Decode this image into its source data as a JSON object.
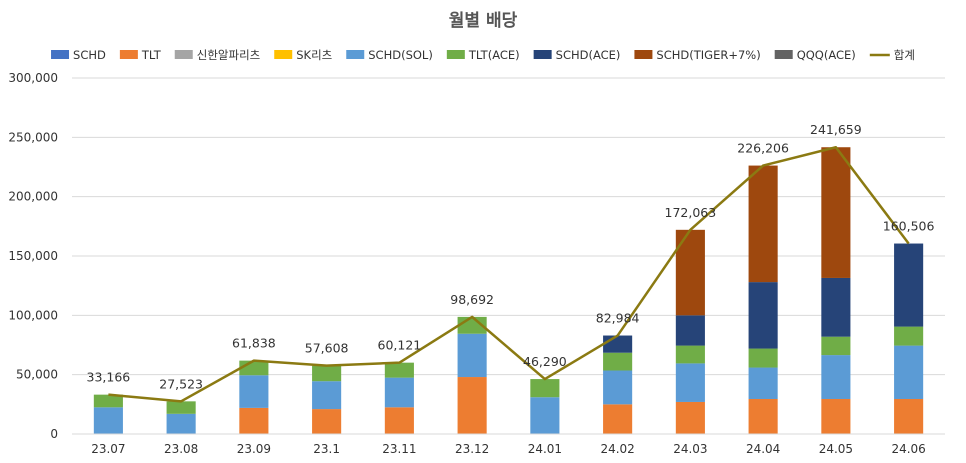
{
  "chart_data": {
    "type": "bar",
    "stacked": true,
    "title": "월별 배당",
    "xlabel": "",
    "ylabel": "",
    "ylim": [
      0,
      300000
    ],
    "yticks": [
      0,
      50000,
      100000,
      150000,
      200000,
      250000,
      300000
    ],
    "ytick_labels": [
      "0",
      "50,000",
      "100,000",
      "150,000",
      "200,000",
      "250,000",
      "300,000"
    ],
    "legend_position": "top",
    "categories": [
      "23.07",
      "23.08",
      "23.09",
      "23.1",
      "23.11",
      "23.12",
      "24.01",
      "24.02",
      "24.03",
      "24.04",
      "24.05",
      "24.06"
    ],
    "series": [
      {
        "name": "SCHD",
        "color": "#4472C4",
        "values": [
          0,
          0,
          0,
          0,
          0,
          0,
          0,
          0,
          0,
          0,
          0,
          0
        ]
      },
      {
        "name": "TLT",
        "color": "#ED7D31",
        "values": [
          0,
          0,
          22000,
          21000,
          22500,
          48000,
          0,
          25000,
          27000,
          29500,
          29500,
          29500
        ]
      },
      {
        "name": "신한알파리츠",
        "color": "#A5A5A5",
        "values": [
          0,
          0,
          0,
          0,
          0,
          0,
          0,
          0,
          0,
          0,
          0,
          0
        ]
      },
      {
        "name": "SK리츠",
        "color": "#FFC000",
        "values": [
          0,
          0,
          0,
          0,
          0,
          0,
          0,
          0,
          0,
          0,
          0,
          0
        ]
      },
      {
        "name": "SCHD(SOL)",
        "color": "#5B9BD5",
        "values": [
          22500,
          17000,
          27500,
          23500,
          25000,
          36500,
          31000,
          28500,
          32500,
          26500,
          37000,
          45000
        ]
      },
      {
        "name": "TLT(ACE)",
        "color": "#70AD47",
        "values": [
          10666,
          10523,
          12338,
          13108,
          12621,
          14192,
          15290,
          15000,
          15000,
          16000,
          15500,
          16000
        ]
      },
      {
        "name": "SCHD(ACE)",
        "color": "#264478",
        "values": [
          0,
          0,
          0,
          0,
          0,
          0,
          0,
          14484,
          25500,
          56000,
          49500,
          70006
        ]
      },
      {
        "name": "SCHD(TIGER+7%)",
        "color": "#9E480E",
        "values": [
          0,
          0,
          0,
          0,
          0,
          0,
          0,
          0,
          72063,
          98206,
          110159,
          0
        ]
      },
      {
        "name": "QQQ(ACE)",
        "color": "#636363",
        "values": [
          0,
          0,
          0,
          0,
          0,
          0,
          0,
          0,
          0,
          0,
          0,
          0
        ]
      }
    ],
    "line": {
      "name": "합계",
      "color": "#8B7A12",
      "values": [
        33166,
        27523,
        61838,
        57608,
        60121,
        98692,
        46290,
        82984,
        172063,
        226206,
        241659,
        160506
      ],
      "labels": [
        "33,166",
        "27,523",
        "61,838",
        "57,608",
        "60,121",
        "98,692",
        "46,290",
        "82,984",
        "172,063",
        "226,206",
        "241,659",
        "160,506"
      ]
    }
  }
}
